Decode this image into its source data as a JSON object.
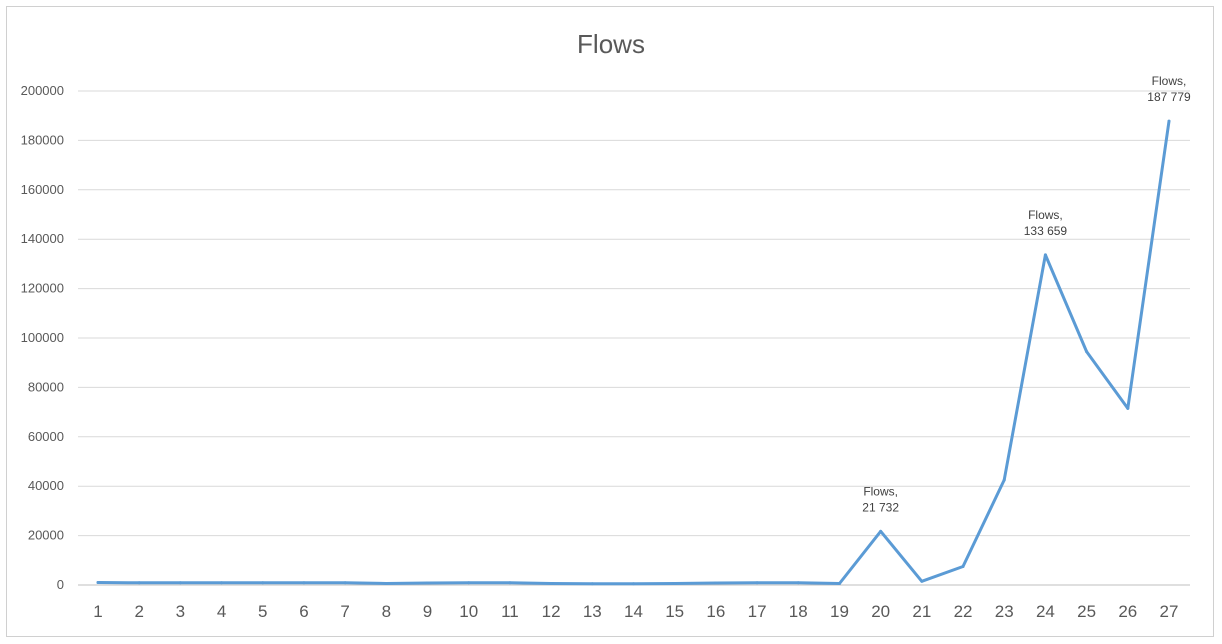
{
  "chart_data": {
    "type": "line",
    "title": "Flows",
    "xlabel": "",
    "ylabel": "",
    "x": [
      "1",
      "2",
      "3",
      "4",
      "5",
      "6",
      "7",
      "8",
      "9",
      "10",
      "11",
      "12",
      "13",
      "14",
      "15",
      "16",
      "17",
      "18",
      "19",
      "20",
      "21",
      "22",
      "23",
      "24",
      "25",
      "26",
      "27"
    ],
    "ylim": [
      0,
      200000
    ],
    "yticks": [
      "0",
      "20000",
      "40000",
      "60000",
      "80000",
      "100000",
      "120000",
      "140000",
      "160000",
      "180000",
      "200000"
    ],
    "grid": true,
    "legend": "none",
    "series": [
      {
        "color": "#5b9bd5",
        "values": [
          1000,
          900,
          900,
          900,
          900,
          900,
          900,
          600,
          800,
          900,
          900,
          600,
          500,
          500,
          600,
          800,
          900,
          900,
          600,
          21732,
          1500,
          7500,
          42500,
          133659,
          94500,
          71500,
          187779
        ]
      }
    ],
    "data_labels": [
      {
        "index": 19,
        "line1": "Flows,",
        "line2": "21 732"
      },
      {
        "index": 23,
        "line1": "Flows,",
        "line2": "133 659"
      },
      {
        "index": 26,
        "line1": "Flows,",
        "line2": "187 779"
      }
    ]
  }
}
